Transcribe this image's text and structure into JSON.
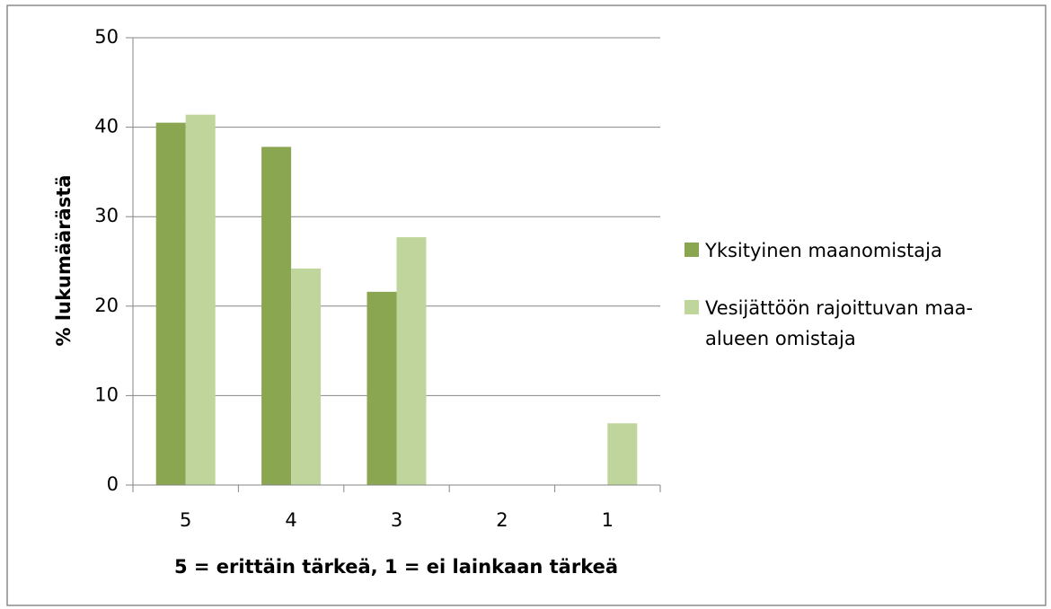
{
  "chart_data": {
    "type": "bar",
    "categories": [
      "5",
      "4",
      "3",
      "2",
      "1"
    ],
    "series": [
      {
        "name": "Yksityinen maanomistaja",
        "color": "#8aa651",
        "values": [
          40.5,
          37.8,
          21.6,
          0,
          0
        ]
      },
      {
        "name": "Vesijättöön rajoittuvan maa-alueen omistaja",
        "color": "#bfd59c",
        "values": [
          41.4,
          24.2,
          27.7,
          0,
          6.9
        ]
      }
    ],
    "ylabel": "% lukumäärästä",
    "xlabel": "5 = erittäin tärkeä, 1 = ei lainkaan tärkeä",
    "ylim": [
      0,
      50
    ],
    "yticks": [
      0,
      10,
      20,
      30,
      40,
      50
    ],
    "grid": true,
    "legend": "right"
  }
}
